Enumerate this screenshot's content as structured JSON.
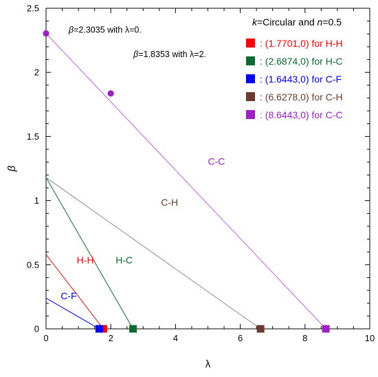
{
  "chart_data": {
    "type": "line",
    "xlabel": "λ",
    "ylabel": "β",
    "xlim": [
      0,
      10
    ],
    "ylim": [
      0,
      2.5
    ],
    "x_ticks": [
      0,
      2,
      4,
      6,
      8,
      10
    ],
    "y_ticks": [
      0,
      0.5,
      1,
      1.5,
      2,
      2.5
    ],
    "x_tick_labels": [
      "0",
      "2",
      "4",
      "6",
      "8",
      "10"
    ],
    "y_tick_labels": [
      "0",
      "0.5",
      "1",
      "1.5",
      "2",
      "2.5"
    ],
    "grid": false,
    "legend_placement": "top-right",
    "legend_title": {
      "k_symbol": "k",
      "k_text": "=Circular and ",
      "n_symbol": "n",
      "n_text": "=0.5"
    },
    "series": [
      {
        "name": "H-H",
        "color": "#ff0000",
        "points": [
          [
            0,
            0.58
          ],
          [
            1.7701,
            0
          ]
        ],
        "legend_text": ": (1.7701,0) for H-H",
        "label": "H-H",
        "label_pos": [
          0.95,
          0.51
        ]
      },
      {
        "name": "H-C",
        "color": "#0b6b30",
        "points": [
          [
            0,
            1.18
          ],
          [
            2.6874,
            0
          ]
        ],
        "legend_text": ": (2.6874,0) for H-C",
        "label": "H-C",
        "label_pos": [
          2.15,
          0.51
        ]
      },
      {
        "name": "C-F",
        "color": "#0000ff",
        "points": [
          [
            0,
            0.24
          ],
          [
            1.6443,
            0
          ]
        ],
        "legend_text": ": (1.6443,0) for C-F",
        "label": "C-F",
        "label_pos": [
          0.45,
          0.23
        ]
      },
      {
        "name": "C-H",
        "color": "#6b3a2a",
        "line_color": "#888888",
        "points": [
          [
            0,
            1.18
          ],
          [
            6.6278,
            0
          ]
        ],
        "legend_text": ": (6.6278,0) for C-H",
        "label": "C-H",
        "label_pos": [
          3.55,
          0.96
        ]
      },
      {
        "name": "C-C",
        "color": "#a020c8",
        "line_color": "#c060e8",
        "points": [
          [
            0,
            2.3035
          ],
          [
            8.6443,
            0
          ]
        ],
        "legend_text": ": (8.6443,0) for C-C",
        "label": "C-C",
        "label_pos": [
          5.0,
          1.28
        ]
      }
    ],
    "annotations": [
      {
        "symbol": "β",
        "text": "=2.3035 with λ=0.",
        "point": [
          0,
          2.3035
        ],
        "text_pos": [
          0.7,
          2.31
        ]
      },
      {
        "symbol": "β",
        "text": "=1.8353 with λ=2.",
        "point": [
          2,
          1.8353
        ],
        "text_pos": [
          2.7,
          2.12
        ]
      }
    ]
  }
}
